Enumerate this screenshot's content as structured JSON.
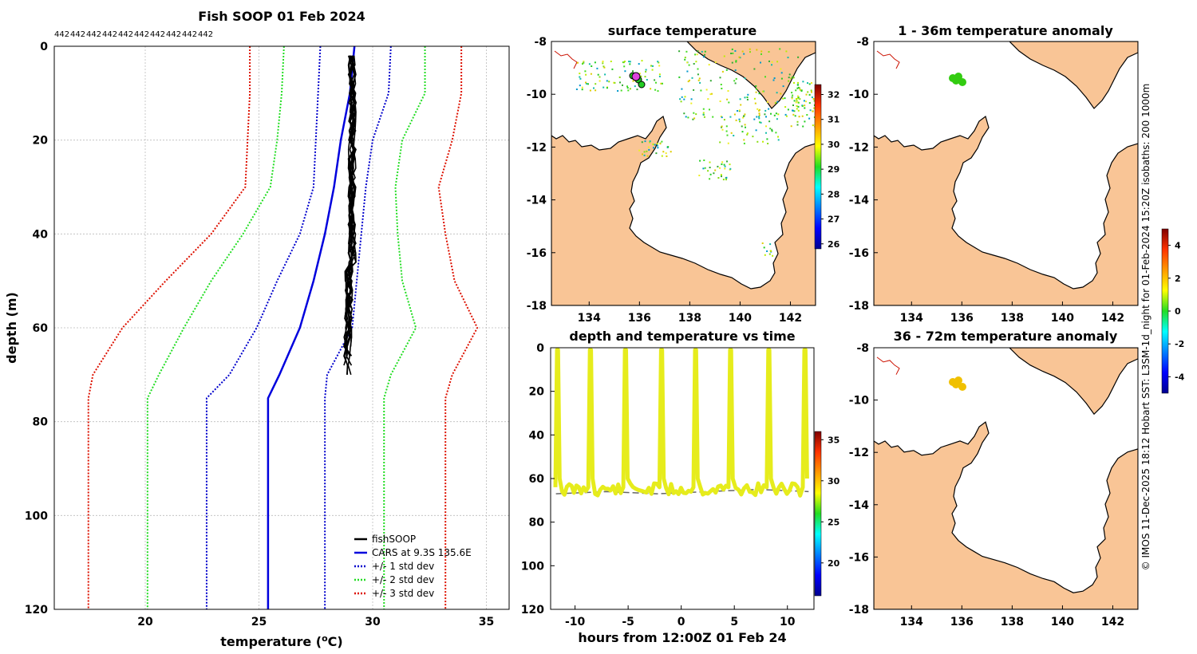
{
  "colors": {
    "land": "#f9c596",
    "gray_grid": "#bbbbbb",
    "black": "#000000",
    "cars": "#0000dd",
    "sd1": "#0000cc",
    "sd2": "#22dd22",
    "sd3": "#dd1100",
    "trace": "#e6ec1c"
  },
  "profile": {
    "title": "Fish SOOP 01 Feb 2024",
    "count_labels": [
      "442",
      "442",
      "442",
      "442",
      "442",
      "442",
      "442",
      "442",
      "442",
      "442"
    ],
    "xlabel": "temperature (",
    "xlabel_sup": "o",
    "xlabel_end": "C)",
    "ylabel": "depth (m)",
    "xlim": [
      16,
      36
    ],
    "ylim": [
      0,
      120
    ],
    "xticks": [
      "20",
      "25",
      "30",
      "35"
    ],
    "yticks": [
      "0",
      "20",
      "40",
      "60",
      "80",
      "100",
      "120"
    ],
    "legend": [
      "fishSOOP",
      "CARS at 9.3S 135.6E",
      "+/- 1 std dev",
      "+/- 2 std dev",
      "+/- 3 std dev"
    ],
    "series": {
      "depth": [
        0,
        10,
        20,
        30,
        40,
        50,
        60,
        70,
        75,
        80,
        90,
        100,
        110,
        120
      ],
      "cars": [
        29.2,
        29.0,
        28.6,
        28.3,
        27.9,
        27.4,
        26.8,
        25.9,
        25.4,
        25.4,
        25.4,
        25.4,
        25.4,
        25.4
      ],
      "p1": [
        30.8,
        30.7,
        30.0,
        29.7,
        29.5,
        29.3,
        29.1,
        28.0,
        27.9,
        27.9,
        27.9,
        27.9,
        27.9,
        27.9
      ],
      "m1": [
        27.7,
        27.6,
        27.5,
        27.4,
        26.8,
        25.8,
        24.9,
        23.7,
        22.7,
        22.7,
        22.7,
        22.7,
        22.7,
        22.7
      ],
      "p2": [
        32.3,
        32.3,
        31.3,
        31.0,
        31.1,
        31.3,
        31.9,
        30.8,
        30.5,
        30.5,
        30.5,
        30.5,
        30.5,
        30.5
      ],
      "m2": [
        26.1,
        26.0,
        25.8,
        25.5,
        24.3,
        22.9,
        21.7,
        20.6,
        20.1,
        20.1,
        20.1,
        20.1,
        20.1,
        20.1
      ],
      "p3": [
        33.9,
        33.9,
        33.5,
        32.9,
        33.2,
        33.6,
        34.6,
        33.5,
        33.2,
        33.2,
        33.2,
        33.2,
        33.2,
        33.2
      ],
      "m3": [
        24.6,
        24.6,
        24.5,
        24.4,
        22.9,
        20.9,
        19.0,
        17.7,
        17.5,
        17.5,
        17.5,
        17.5,
        17.5,
        17.5
      ]
    }
  },
  "sst": {
    "title": "surface temperature",
    "xticks": [
      "134",
      "136",
      "138",
      "140",
      "142"
    ],
    "yticks": [
      "-8",
      "-10",
      "-12",
      "-14",
      "-16",
      "-18"
    ],
    "cbticks": [
      "32",
      "31",
      "30",
      "29",
      "28",
      "27",
      "26"
    ],
    "clim": [
      25.8,
      32.4
    ]
  },
  "timeseries": {
    "title": "depth and temperature vs time",
    "xlabel": "hours from 12:00Z 01 Feb 24",
    "xticks": [
      "-10",
      "-5",
      "0",
      "5",
      "10"
    ],
    "yticks": [
      "0",
      "20",
      "40",
      "60",
      "80",
      "100",
      "120"
    ],
    "cbticks": [
      "35",
      "30",
      "25",
      "20"
    ],
    "xlim": [
      -12.3,
      12.5
    ],
    "ylim": [
      0,
      120
    ],
    "clim": [
      16,
      36
    ],
    "dive_peaks_hours": [
      -11.7,
      -8.6,
      -5.3,
      -1.9,
      1.3,
      4.6,
      8.2,
      11.6
    ],
    "bottom_depth_m": [
      67,
      66,
      67,
      66,
      65,
      66
    ]
  },
  "anom1": {
    "title": "1 - 36m temperature anomaly",
    "xticks": [
      "134",
      "136",
      "138",
      "140",
      "142"
    ],
    "yticks": [
      "-8",
      "-10",
      "-12",
      "-14",
      "-16",
      "-18"
    ]
  },
  "anom2": {
    "title": "36 - 72m temperature anomaly",
    "yticks": [
      "-8",
      "-10",
      "-12",
      "-14",
      "-16",
      "-18"
    ],
    "xticks": [
      "134",
      "136",
      "138",
      "140",
      "142"
    ]
  },
  "anom_colorbar": {
    "ticks": [
      "4",
      "2",
      "0",
      "-2",
      "-4"
    ],
    "clim": [
      -5,
      5
    ]
  },
  "side_text": "© IMOS 11-Dec-2025 18:12 Hobart SST: L3SM-1d_night for 01-Feb-2024 15:20Z isobaths: 200  1000m"
}
